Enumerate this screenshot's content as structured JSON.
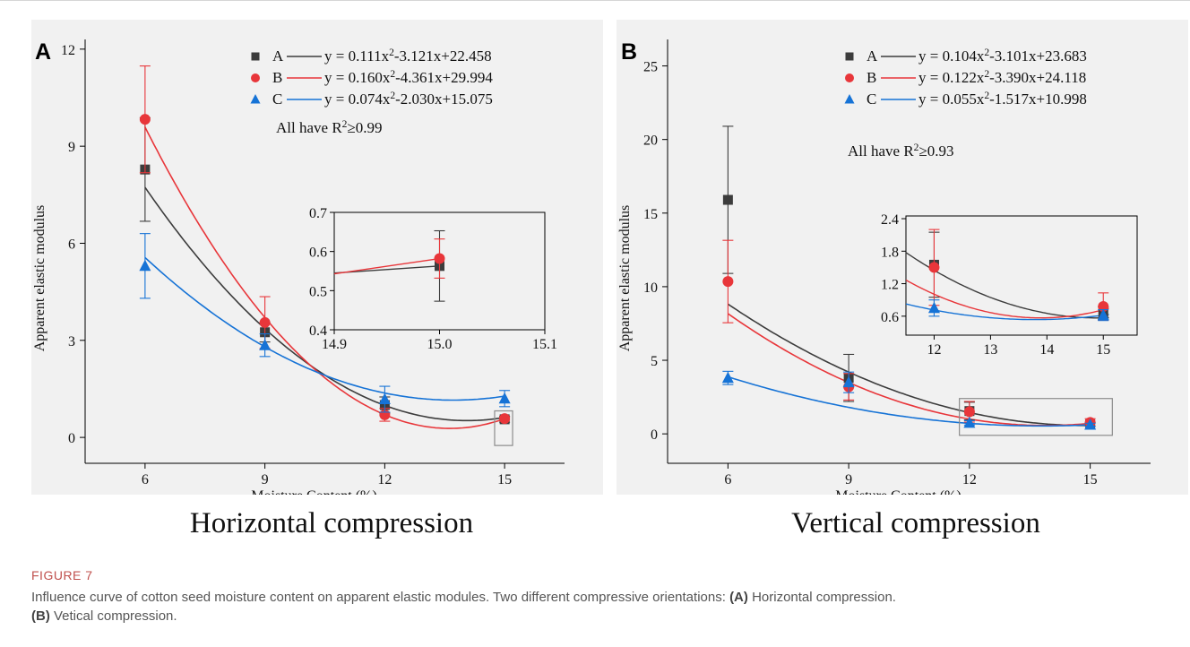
{
  "figure": {
    "label": "FIGURE 7",
    "caption_main": "Influence curve of cotton seed moisture content on apparent elastic modules. Two different compressive orientations:",
    "caption_a_label": "(A)",
    "caption_a_text": "Horizontal compression.",
    "caption_b_label": "(B)",
    "caption_b_text": "Vetical compression."
  },
  "panels": [
    {
      "letter": "A",
      "subtitle": "Horizontal compression"
    },
    {
      "letter": "B",
      "subtitle": "Vertical compression"
    }
  ],
  "colors": {
    "A": "#3c3c3c",
    "B": "#e8363a",
    "C": "#1673d6",
    "axis": "#000000",
    "bg": "#f1f1f1",
    "box": "#8c8c8c"
  },
  "chart_data": [
    {
      "type": "scatter",
      "panel": "A",
      "xlabel": "Moisture Content (%)",
      "ylabel": "Apparent elastic modulus",
      "xlim": [
        4.5,
        16.5
      ],
      "ylim": [
        -0.8,
        12.3
      ],
      "xticks": [
        6,
        9,
        12,
        15
      ],
      "yticks": [
        0,
        3,
        6,
        9,
        12
      ],
      "legend_location": "top-right",
      "note": "All have R²≥0.99",
      "series": [
        {
          "name": "A",
          "equation": "y = 0.111x²-3.121x+22.458",
          "marker": "square",
          "coef": [
            0.111,
            -3.121,
            22.458
          ],
          "x": [
            6,
            9,
            12,
            15
          ],
          "y": [
            8.28,
            3.25,
            1.0,
            0.56
          ],
          "err": [
            1.6,
            0.3,
            0.25,
            0.09
          ]
        },
        {
          "name": "B",
          "equation": "y = 0.160x²-4.361x+29.994",
          "marker": "circle",
          "coef": [
            0.16,
            -4.361,
            29.994
          ],
          "x": [
            6,
            9,
            12,
            15
          ],
          "y": [
            9.83,
            3.55,
            0.7,
            0.58
          ],
          "err": [
            1.65,
            0.8,
            0.2,
            0.05
          ]
        },
        {
          "name": "C",
          "equation": "y = 0.074x²-2.030x+15.075",
          "marker": "triangle",
          "coef": [
            0.074,
            -2.03,
            15.075
          ],
          "x": [
            6,
            9,
            12,
            15
          ],
          "y": [
            5.3,
            2.85,
            1.18,
            1.2
          ],
          "err": [
            1.0,
            0.35,
            0.4,
            0.25
          ]
        }
      ],
      "inset": {
        "xlim": [
          14.9,
          15.1
        ],
        "ylim": [
          0.4,
          0.7
        ],
        "xticks": [
          14.9,
          15.0,
          15.1
        ],
        "yticks": [
          0.4,
          0.5,
          0.6,
          0.7
        ],
        "series": [
          {
            "name": "A",
            "x": [
              14.9,
              15.0
            ],
            "y": [
              0.545,
              0.563
            ],
            "err": [
              0,
              0.09
            ]
          },
          {
            "name": "B",
            "x": [
              14.9,
              15.0
            ],
            "y": [
              0.543,
              0.582
            ],
            "err": [
              0,
              0.05
            ]
          }
        ]
      }
    },
    {
      "type": "scatter",
      "panel": "B",
      "xlabel": "Moisture Content (%)",
      "ylabel": "Apparent elastic modulus",
      "xlim": [
        4.5,
        16.5
      ],
      "ylim": [
        -2,
        26.8
      ],
      "xticks": [
        6,
        9,
        12,
        15
      ],
      "yticks": [
        0,
        5,
        10,
        15,
        20,
        25
      ],
      "legend_location": "top-right",
      "note": "All have R²≥0.93",
      "series": [
        {
          "name": "A",
          "equation": "y = 0.104x²-3.101x+23.683",
          "marker": "square",
          "coef": [
            0.104,
            -3.101,
            23.683
          ],
          "x": [
            6,
            9,
            12,
            15
          ],
          "y": [
            15.9,
            3.8,
            1.55,
            0.65
          ],
          "err": [
            5.0,
            1.6,
            0.6,
            0.12
          ]
        },
        {
          "name": "B",
          "equation": "y = 0.122x²-3.390x+24.118",
          "marker": "circle",
          "coef": [
            0.122,
            -3.39,
            24.118
          ],
          "x": [
            6,
            9,
            12,
            15
          ],
          "y": [
            10.35,
            3.2,
            1.5,
            0.78
          ],
          "err": [
            2.8,
            0.9,
            0.7,
            0.25
          ]
        },
        {
          "name": "C",
          "equation": "y = 0.055x²-1.517x+10.998",
          "marker": "triangle",
          "coef": [
            0.055,
            -1.517,
            10.998
          ],
          "x": [
            6,
            9,
            12,
            15
          ],
          "y": [
            3.8,
            3.5,
            0.75,
            0.62
          ],
          "err": [
            0.45,
            0.7,
            0.15,
            0.1
          ]
        }
      ],
      "inset": {
        "xlim": [
          11.5,
          15.6
        ],
        "ylim": [
          0.25,
          2.45
        ],
        "xticks": [
          12,
          13,
          14,
          15
        ],
        "yticks": [
          0.6,
          1.2,
          1.8,
          2.4
        ],
        "series": [
          {
            "name": "A",
            "x": [
              12,
              15
            ],
            "y": [
              1.55,
              0.65
            ],
            "err": [
              0.6,
              0.12
            ]
          },
          {
            "name": "B",
            "x": [
              12,
              15
            ],
            "y": [
              1.5,
              0.78
            ],
            "err": [
              0.7,
              0.25
            ]
          },
          {
            "name": "C",
            "x": [
              12,
              15
            ],
            "y": [
              0.75,
              0.62
            ],
            "err": [
              0.15,
              0.1
            ]
          }
        ]
      }
    }
  ]
}
